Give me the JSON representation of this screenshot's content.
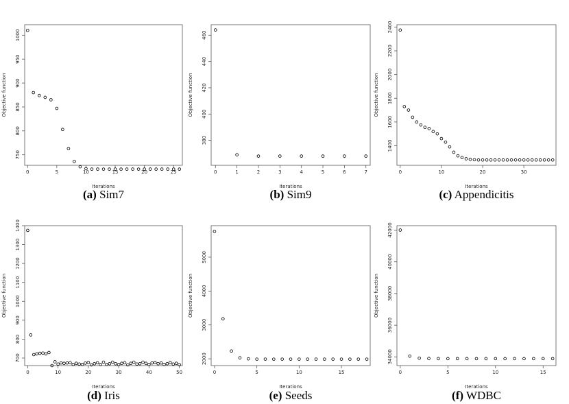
{
  "chart_data": [
    {
      "type": "scatter",
      "letter": "(a)",
      "name": "Sim7",
      "xlabel": "Iterations",
      "ylabel": "Objective function",
      "xlim": [
        -0.5,
        26.5
      ],
      "ylim": [
        728,
        1022
      ],
      "xticks": [
        0,
        5,
        10,
        15,
        20,
        25
      ],
      "yticks": [
        750,
        800,
        850,
        900,
        950,
        1000
      ],
      "x": [
        0,
        1,
        2,
        3,
        4,
        5,
        6,
        7,
        8,
        9,
        10,
        11,
        12,
        13,
        14,
        15,
        16,
        17,
        18,
        19,
        20,
        21,
        22,
        23,
        24,
        25,
        26
      ],
      "y": [
        1010,
        880,
        874,
        870,
        865,
        847,
        803,
        763,
        736,
        725,
        721,
        720,
        720,
        720,
        720,
        720,
        720,
        720,
        720,
        720,
        720,
        720,
        720,
        720,
        720,
        720,
        720
      ]
    },
    {
      "type": "scatter",
      "letter": "(b)",
      "name": "Sim9",
      "xlabel": "Iterations",
      "ylabel": "Objective function",
      "xlim": [
        -0.2,
        7.2
      ],
      "ylim": [
        361,
        468
      ],
      "xticks": [
        0,
        1,
        2,
        3,
        4,
        5,
        6,
        7
      ],
      "yticks": [
        380,
        400,
        420,
        440,
        460
      ],
      "x": [
        0,
        1,
        2,
        3,
        4,
        5,
        6,
        7
      ],
      "y": [
        464,
        369,
        368,
        368,
        368,
        368,
        368,
        368
      ]
    },
    {
      "type": "scatter",
      "letter": "(c)",
      "name": "Appendicitis",
      "xlabel": "Iterations",
      "ylabel": "Objective function",
      "xlim": [
        -0.8,
        37.8
      ],
      "ylim": [
        1235,
        2420
      ],
      "xticks": [
        0,
        10,
        20,
        30
      ],
      "yticks": [
        1400,
        1600,
        1800,
        2000,
        2200,
        2400
      ],
      "x": [
        0,
        1,
        2,
        3,
        4,
        5,
        6,
        7,
        8,
        9,
        10,
        11,
        12,
        13,
        14,
        15,
        16,
        17,
        18,
        19,
        20,
        21,
        22,
        23,
        24,
        25,
        26,
        27,
        28,
        29,
        30,
        31,
        32,
        33,
        34,
        35,
        36,
        37
      ],
      "y": [
        2375,
        1730,
        1700,
        1640,
        1600,
        1575,
        1555,
        1545,
        1520,
        1500,
        1460,
        1430,
        1390,
        1345,
        1315,
        1300,
        1290,
        1285,
        1282,
        1280,
        1280,
        1280,
        1280,
        1280,
        1280,
        1280,
        1280,
        1280,
        1280,
        1280,
        1280,
        1280,
        1280,
        1280,
        1280,
        1280,
        1280,
        1280
      ]
    },
    {
      "type": "scatter",
      "letter": "(d)",
      "name": "Iris",
      "xlabel": "Iterations",
      "ylabel": "Objective function",
      "xlim": [
        -1,
        51
      ],
      "ylim": [
        660,
        1400
      ],
      "xticks": [
        0,
        10,
        20,
        30,
        40,
        50
      ],
      "yticks": [
        700,
        800,
        900,
        1000,
        1100,
        1200,
        1300,
        1400
      ],
      "x": [
        0,
        1,
        2,
        3,
        4,
        5,
        6,
        7,
        8,
        9,
        10,
        11,
        12,
        13,
        14,
        15,
        16,
        17,
        18,
        19,
        20,
        21,
        22,
        23,
        24,
        25,
        26,
        27,
        28,
        29,
        30,
        31,
        32,
        33,
        34,
        35,
        36,
        37,
        38,
        39,
        40,
        41,
        42,
        43,
        44,
        45,
        46,
        47,
        48,
        49,
        50
      ],
      "y": [
        1375,
        822,
        718,
        722,
        725,
        726,
        722,
        729,
        660,
        680,
        668,
        674,
        672,
        674,
        675,
        666,
        672,
        668,
        666,
        673,
        676,
        664,
        670,
        675,
        666,
        678,
        666,
        670,
        678,
        670,
        666,
        672,
        675,
        664,
        672,
        678,
        668,
        670,
        678,
        672,
        666,
        674,
        676,
        670,
        674,
        666,
        670,
        676,
        668,
        672,
        665
      ]
    },
    {
      "type": "scatter",
      "letter": "(e)",
      "name": "Seeds",
      "xlabel": "Iterations",
      "ylabel": "Objective function",
      "xlim": [
        -0.4,
        18.4
      ],
      "ylim": [
        1800,
        5930
      ],
      "xticks": [
        0,
        5,
        10,
        15
      ],
      "yticks": [
        2000,
        3000,
        4000,
        5000
      ],
      "x": [
        0,
        1,
        2,
        3,
        4,
        5,
        6,
        7,
        8,
        9,
        10,
        11,
        12,
        13,
        14,
        15,
        16,
        17,
        18
      ],
      "y": [
        5760,
        3180,
        2230,
        2030,
        2000,
        1990,
        1990,
        1990,
        1990,
        1990,
        1990,
        1990,
        1990,
        1990,
        1990,
        1990,
        1990,
        1990,
        1990
      ]
    },
    {
      "type": "scatter",
      "letter": "(f)",
      "name": "WDBC",
      "xlabel": "Iterations",
      "ylabel": "Objective function",
      "xlim": [
        -0.35,
        16.35
      ],
      "ylim": [
        33450,
        42280
      ],
      "xticks": [
        0,
        5,
        10,
        15
      ],
      "yticks": [
        34000,
        36000,
        38000,
        40000,
        42000
      ],
      "x": [
        0,
        1,
        2,
        3,
        4,
        5,
        6,
        7,
        8,
        9,
        10,
        11,
        12,
        13,
        14,
        15,
        16
      ],
      "y": [
        42000,
        34050,
        33920,
        33900,
        33890,
        33890,
        33890,
        33890,
        33890,
        33890,
        33890,
        33890,
        33890,
        33890,
        33890,
        33890,
        33890
      ]
    }
  ]
}
